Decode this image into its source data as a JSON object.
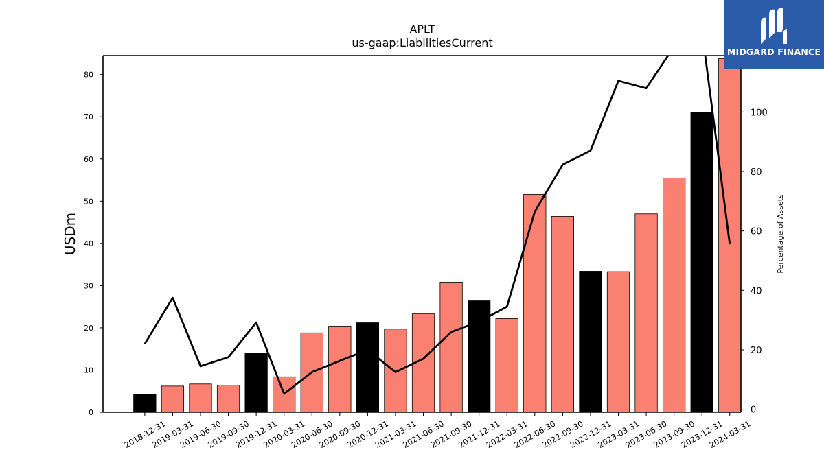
{
  "chart_data": {
    "type": "bar",
    "title": "APLT",
    "subtitle": "us-gaap:LiabilitiesCurrent",
    "ylabel": "USDm",
    "y2label": "Percentage of Assets",
    "ylim": [
      0,
      84.5
    ],
    "y2lim": [
      -1,
      119
    ],
    "yticks": [
      0,
      10,
      20,
      30,
      40,
      50,
      60,
      70,
      80
    ],
    "y2ticks": [
      0,
      20,
      40,
      60,
      80,
      100
    ],
    "categories": [
      "2018-12-31",
      "2019-03-31",
      "2019-06-30",
      "2019-09-30",
      "2019-12-31",
      "2020-03-31",
      "2020-06-30",
      "2020-09-30",
      "2020-12-31",
      "2021-03-31",
      "2021-06-30",
      "2021-09-30",
      "2021-12-31",
      "2022-03-31",
      "2022-06-30",
      "2022-09-30",
      "2022-12-31",
      "2023-03-31",
      "2023-06-30",
      "2023-09-30",
      "2023-12-31",
      "2024-03-31"
    ],
    "series": [
      {
        "type": "bar",
        "axis": "left",
        "values": [
          4.3,
          6.2,
          6.7,
          6.4,
          14.0,
          8.4,
          18.8,
          20.4,
          21.2,
          19.7,
          23.3,
          30.8,
          26.4,
          22.2,
          51.6,
          46.4,
          33.4,
          33.3,
          47.0,
          55.5,
          71.1,
          83.8
        ],
        "colors": [
          "#000000",
          "#fa8072",
          "#fa8072",
          "#fa8072",
          "#000000",
          "#fa8072",
          "#fa8072",
          "#fa8072",
          "#000000",
          "#fa8072",
          "#fa8072",
          "#fa8072",
          "#000000",
          "#fa8072",
          "#fa8072",
          "#fa8072",
          "#000000",
          "#fa8072",
          "#fa8072",
          "#fa8072",
          "#000000",
          "#fa8072"
        ]
      },
      {
        "type": "line",
        "axis": "right",
        "values": [
          22,
          37.5,
          14.5,
          17.5,
          29.2,
          5.2,
          12.5,
          16.3,
          20,
          12.5,
          17,
          26,
          29.5,
          34.5,
          66.5,
          82.3,
          87,
          110.5,
          108,
          122,
          127.5,
          55.5
        ],
        "color": "#000000"
      }
    ],
    "grid": false,
    "legend": "none"
  },
  "logo": {
    "text": "MIDGARD FINANCE",
    "icon": "stylized-m-icon",
    "background": "#2a5caa"
  }
}
